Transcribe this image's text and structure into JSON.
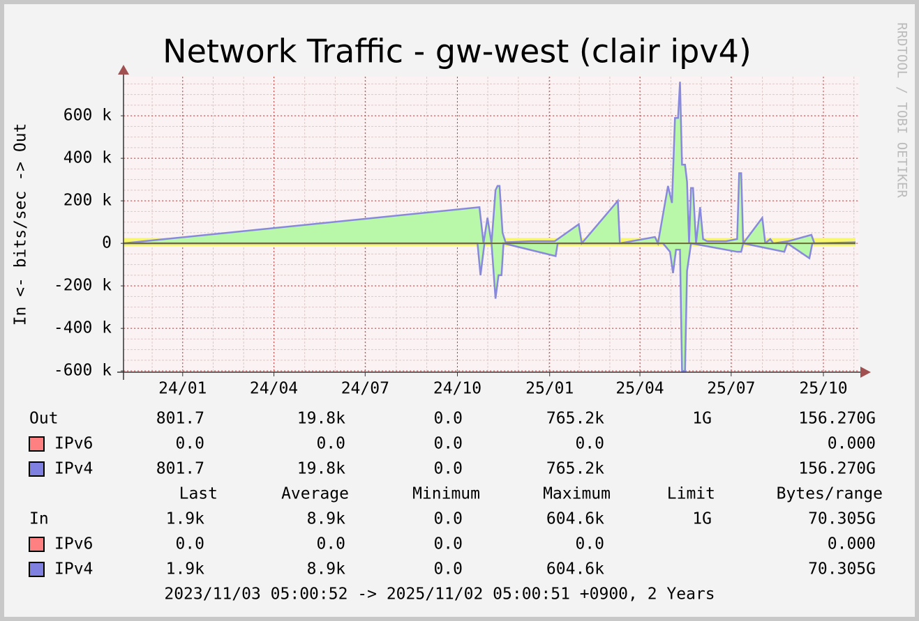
{
  "chart_data": {
    "type": "line",
    "title": "Network Traffic - gw-west (clair ipv4)",
    "y_label": "In <- bits/sec -> Out",
    "watermark": "RRDTOOL / TOBI OETIKER",
    "footer": "2023/11/03 05:00:52 -> 2025/11/02 05:00:51 +0900, 2 Years",
    "xlim": [
      0,
      730
    ],
    "xticks": [
      {
        "value": 59,
        "label": "24/01"
      },
      {
        "value": 150,
        "label": "24/04"
      },
      {
        "value": 241,
        "label": "24/07"
      },
      {
        "value": 333,
        "label": "24/10"
      },
      {
        "value": 425,
        "label": "25/01"
      },
      {
        "value": 515,
        "label": "25/04"
      },
      {
        "value": 606,
        "label": "25/07"
      },
      {
        "value": 698,
        "label": "25/10"
      }
    ],
    "ylim": [
      -606000,
      784000
    ],
    "yticks": [
      {
        "value": -600000,
        "label": "-600 k"
      },
      {
        "value": -400000,
        "label": "-400 k"
      },
      {
        "value": -200000,
        "label": "-200 k"
      },
      0,
      {
        "value": 200000,
        "label": "200 k"
      },
      {
        "value": 400000,
        "label": "400 k"
      },
      {
        "value": 600000,
        "label": "600 k"
      }
    ],
    "yminor": 50000,
    "grid": true,
    "line_color": "#8888dd",
    "fill_color": "#b8f8a8",
    "series": [
      {
        "name": "Out",
        "x": [
          0,
          355,
          359,
          363,
          367,
          371,
          373,
          375,
          378,
          381,
          406,
          409,
          430,
          454,
          457,
          493,
          495,
          530,
          533,
          543,
          547,
          550,
          553,
          555,
          557,
          560,
          562,
          564,
          566,
          568,
          571,
          575,
          578,
          582,
          601,
          612,
          614,
          616,
          618,
          637,
          640,
          645,
          648,
          663,
          686,
          689,
          730
        ],
        "values": [
          0,
          170000,
          0,
          120000,
          0,
          250000,
          270000,
          270000,
          50000,
          5000,
          10000,
          10000,
          10000,
          90000,
          0,
          200000,
          0,
          30000,
          0,
          270000,
          190000,
          590000,
          590000,
          760000,
          370000,
          370000,
          290000,
          0,
          260000,
          260000,
          0,
          170000,
          20000,
          10000,
          10000,
          20000,
          330000,
          330000,
          0,
          120000,
          0,
          20000,
          0,
          10000,
          40000,
          0,
          5000
        ]
      },
      {
        "name": "In",
        "x": [
          0,
          353,
          356,
          360,
          367,
          371,
          374,
          377,
          379,
          431,
          433,
          538,
          545,
          548,
          551,
          555,
          557,
          560,
          562,
          566,
          612,
          616,
          618,
          659,
          662,
          684,
          687,
          730
        ],
        "values": [
          0,
          0,
          -150000,
          0,
          0,
          -260000,
          -150000,
          -150000,
          0,
          -60000,
          0,
          0,
          -40000,
          -140000,
          -30000,
          -30000,
          -600000,
          -600000,
          -130000,
          0,
          -40000,
          -40000,
          0,
          -40000,
          0,
          -70000,
          0,
          0
        ]
      }
    ],
    "legend_table": {
      "header": [
        "Last",
        "Average",
        "Minimum",
        "Maximum",
        "Limit",
        "Bytes/range"
      ],
      "groups": [
        {
          "rows": [
            {
              "name": "Out",
              "values": [
                "801.7",
                "19.8k",
                "0.0",
                "765.2k",
                "1G",
                "156.270G"
              ]
            },
            {
              "name": "IPv6",
              "color": "#ff8080",
              "values": [
                "0.0",
                "0.0",
                "0.0",
                "0.0",
                null,
                "0.000"
              ]
            },
            {
              "name": "IPv4",
              "color": "#8080e0",
              "values": [
                "801.7",
                "19.8k",
                "0.0",
                "765.2k",
                null,
                "156.270G"
              ]
            }
          ]
        },
        {
          "rows": [
            {
              "name": "In",
              "values": [
                "1.9k",
                "8.9k",
                "0.0",
                "604.6k",
                "1G",
                "70.305G"
              ]
            },
            {
              "name": "IPv6",
              "color": "#ff8080",
              "values": [
                "0.0",
                "0.0",
                "0.0",
                "0.0",
                null,
                "0.000"
              ]
            },
            {
              "name": "IPv4",
              "color": "#8080e0",
              "values": [
                "1.9k",
                "8.9k",
                "0.0",
                "604.6k",
                null,
                "70.305G"
              ]
            }
          ]
        }
      ]
    }
  }
}
